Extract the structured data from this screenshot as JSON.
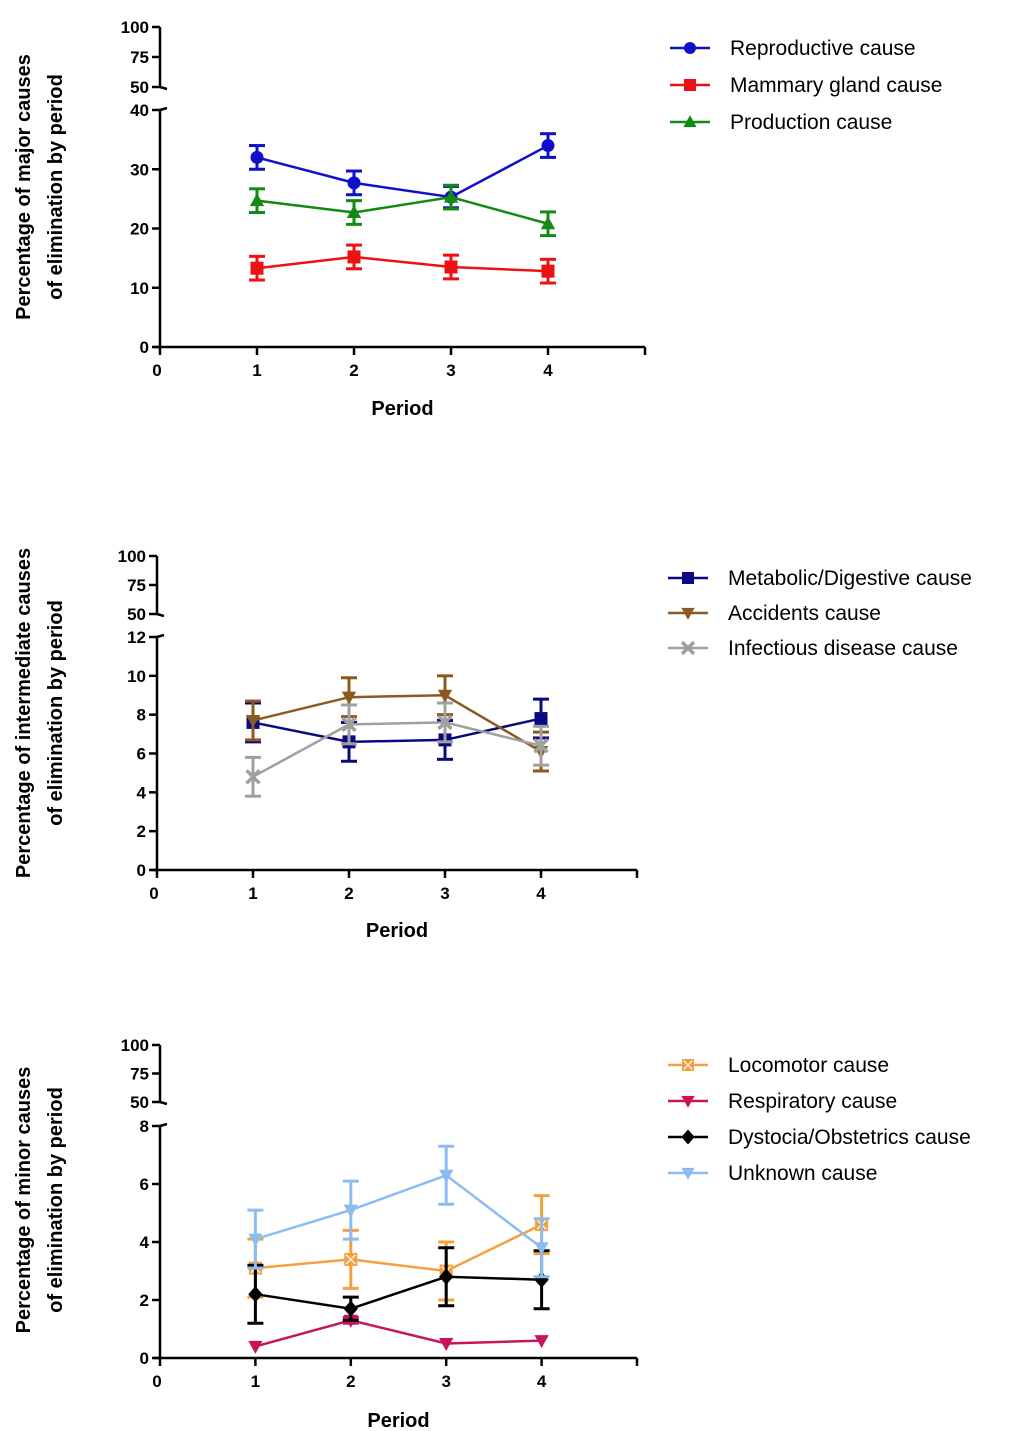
{
  "chart_data": [
    {
      "type": "line",
      "xlabel": "Period",
      "ylabel": [
        "Percentage of major causes",
        "of elimination by period"
      ],
      "x": [
        1,
        2,
        3,
        4
      ],
      "x_ticks": [
        0,
        1,
        2,
        3,
        4
      ],
      "xlim": [
        0,
        5
      ],
      "ylim_lower": [
        0,
        40
      ],
      "y_ticks_lower": [
        0,
        10,
        20,
        30,
        40
      ],
      "ylim_upper": [
        50,
        100
      ],
      "y_ticks_upper": [
        50,
        75,
        100
      ],
      "legend_position": "right",
      "series": [
        {
          "name": "Reproductive cause",
          "color": "#1010cc",
          "marker": "circle",
          "values": [
            32.0,
            27.7,
            25.3,
            34.0
          ],
          "errors": [
            2.0,
            2.0,
            1.8,
            2.0
          ]
        },
        {
          "name": "Mammary gland cause",
          "color": "#ee1111",
          "marker": "square",
          "values": [
            13.3,
            15.2,
            13.5,
            12.8
          ],
          "errors": [
            2.0,
            2.0,
            2.0,
            2.0
          ]
        },
        {
          "name": "Production cause",
          "color": "#138a13",
          "marker": "triangle-up",
          "values": [
            24.7,
            22.7,
            25.3,
            20.8
          ],
          "errors": [
            2.0,
            2.0,
            2.0,
            2.0
          ]
        }
      ]
    },
    {
      "type": "line",
      "xlabel": "Period",
      "ylabel": [
        "Percentage of intermediate causes",
        "of elimination by period"
      ],
      "x": [
        1,
        2,
        3,
        4
      ],
      "x_ticks": [
        0,
        1,
        2,
        3,
        4
      ],
      "xlim": [
        0,
        5
      ],
      "ylim_lower": [
        0,
        12
      ],
      "y_ticks_lower": [
        0,
        2,
        4,
        6,
        8,
        10,
        12
      ],
      "ylim_upper": [
        50,
        100
      ],
      "y_ticks_upper": [
        50,
        75,
        100
      ],
      "legend_position": "right",
      "series": [
        {
          "name": "Metabolic/Digestive cause",
          "color": "#0a0a80",
          "marker": "square",
          "values": [
            7.6,
            6.6,
            6.7,
            7.8
          ],
          "errors": [
            1.0,
            1.0,
            1.0,
            1.0
          ]
        },
        {
          "name": "Accidents cause",
          "color": "#8b5a1e",
          "marker": "triangle-down",
          "values": [
            7.7,
            8.9,
            9.0,
            6.1
          ],
          "errors": [
            1.0,
            1.0,
            1.0,
            1.0
          ]
        },
        {
          "name": "Infectious disease cause",
          "color": "#a0a0a0",
          "marker": "x",
          "values": [
            4.8,
            7.5,
            7.6,
            6.4
          ],
          "errors": [
            1.0,
            1.0,
            1.0,
            1.0
          ]
        }
      ]
    },
    {
      "type": "line",
      "xlabel": "Period",
      "ylabel": [
        "Percentage of minor causes",
        "of elimination by period"
      ],
      "x": [
        1,
        2,
        3,
        4
      ],
      "x_ticks": [
        0,
        1,
        2,
        3,
        4
      ],
      "xlim": [
        0,
        5
      ],
      "ylim_lower": [
        0,
        8
      ],
      "y_ticks_lower": [
        0,
        2,
        4,
        6,
        8
      ],
      "ylim_upper": [
        50,
        100
      ],
      "y_ticks_upper": [
        50,
        75,
        100
      ],
      "legend_position": "right",
      "series": [
        {
          "name": "Locomotor cause",
          "color": "#f5a040",
          "marker": "square-x",
          "values": [
            3.1,
            3.4,
            3.0,
            4.6
          ],
          "errors": [
            1.0,
            1.0,
            1.0,
            1.0
          ]
        },
        {
          "name": "Respiratory cause",
          "color": "#c8145a",
          "marker": "triangle-down",
          "values": [
            0.4,
            1.3,
            0.5,
            0.6
          ],
          "errors": [
            0,
            0.1,
            0,
            0
          ]
        },
        {
          "name": "Dystocia/Obstetrics cause",
          "color": "#000000",
          "marker": "diamond",
          "values": [
            2.2,
            1.7,
            2.8,
            2.7
          ],
          "errors": [
            1.0,
            0.4,
            1.0,
            1.0
          ]
        },
        {
          "name": "Unknown cause",
          "color": "#8cbcf0",
          "marker": "triangle-down",
          "values": [
            4.1,
            5.1,
            6.3,
            3.8
          ],
          "errors": [
            1.0,
            1.0,
            1.0,
            1.0
          ]
        }
      ]
    }
  ]
}
